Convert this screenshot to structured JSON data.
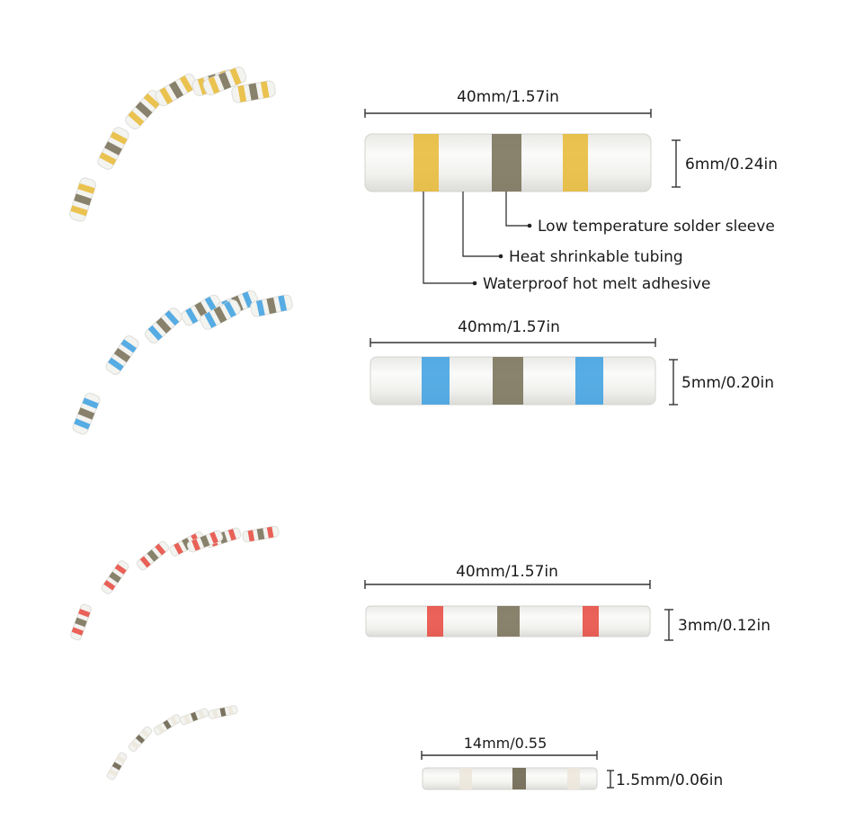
{
  "connectors": [
    {
      "name": "yellow",
      "band_color": "#e8b933",
      "solder_color": "#7c745c",
      "length_label": "40mm/1.57in",
      "diameter_label": "6mm/0.24in"
    },
    {
      "name": "blue",
      "band_color": "#3a9fe0",
      "solder_color": "#7c745c",
      "length_label": "40mm/1.57in",
      "diameter_label": "5mm/0.20in"
    },
    {
      "name": "red",
      "band_color": "#e6463c",
      "solder_color": "#7c745c",
      "length_label": "40mm/1.57in",
      "diameter_label": "3mm/0.12in"
    },
    {
      "name": "white",
      "band_color": "#ece6da",
      "solder_color": "#6e6650",
      "length_label": "14mm/0.55",
      "diameter_label": "1.5mm/0.06in"
    }
  ],
  "callouts": {
    "solder_sleeve": "Low temperature solder sleeve",
    "heat_tubing": "Heat shrinkable tubing",
    "hot_melt": "Waterproof hot melt adhesive"
  },
  "colors": {
    "tube": "#f4f4f2",
    "tube_edge": "#d8d8d4",
    "background": "#ffffff"
  }
}
